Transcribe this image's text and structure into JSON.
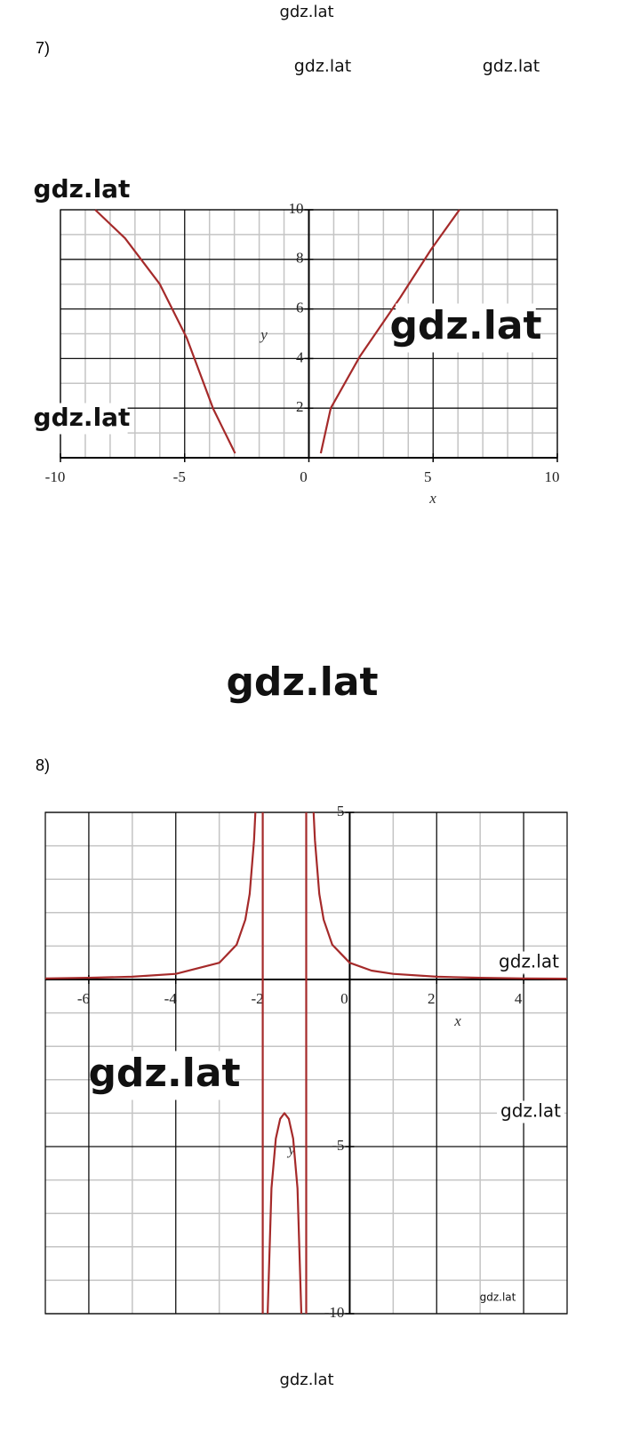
{
  "labels": [
    "7)",
    "8)"
  ],
  "watermarks": [
    "gdz.lat",
    "gdz.lat",
    "gdz.lat",
    "gdz.lat",
    "gdz.lat",
    "gdz.lat",
    "gdz.lat",
    "gdz.lat",
    "gdz.lat",
    "gdz.lat",
    "gdz.lat",
    "gdz.lat"
  ],
  "chart_data": [
    {
      "type": "line",
      "xlabel": "x",
      "ylabel": "y",
      "xlim": [
        -10,
        10
      ],
      "ylim": [
        0,
        10
      ],
      "xticks": [
        -10,
        -5,
        0,
        5,
        10
      ],
      "yticks": [
        2,
        4,
        6,
        8,
        10
      ],
      "xgrid": [
        -10,
        -5,
        0,
        5,
        10
      ],
      "ygrid": [
        0,
        2,
        4,
        6,
        8,
        10
      ],
      "xminor": [
        -9,
        -8,
        -7,
        -6,
        -4,
        -3,
        -2,
        -1,
        1,
        2,
        3,
        4,
        6,
        7,
        8,
        9
      ],
      "yminor": [
        1,
        3,
        5,
        7,
        9
      ],
      "series": [
        {
          "color": "#a52a2a",
          "x": [
            -8.6,
            -7.4,
            -6,
            -4.92,
            -3.85,
            -2.97,
            null,
            0.48,
            0.88,
            2.06,
            3.67,
            4.92,
            6.06
          ],
          "values": [
            10,
            8.85,
            7,
            4.84,
            1.97,
            0.18,
            null,
            0.18,
            2,
            4.1,
            6.45,
            8.4,
            10
          ]
        }
      ]
    },
    {
      "type": "line",
      "xlabel": "x",
      "ylabel": "y",
      "xlim": [
        -7,
        5
      ],
      "ylim": [
        -10,
        5
      ],
      "xticks": [
        -6,
        -4,
        -2,
        0,
        2,
        4
      ],
      "yticks": [
        5,
        -5,
        -10
      ],
      "xgrid": [
        -6,
        -4,
        -2,
        0,
        2,
        4
      ],
      "ygrid": [
        5,
        0,
        -5,
        -10
      ],
      "xminor": [
        -5,
        -3,
        -1,
        1,
        3
      ],
      "yminor": [
        4,
        3,
        2,
        1,
        -1,
        -2,
        -3,
        -4,
        -6,
        -7,
        -8,
        -9
      ],
      "asymptotes": [
        -2,
        -1
      ],
      "series": [
        {
          "color": "#a52a2a",
          "x": [
            -7,
            -6,
            -5,
            -4,
            -3,
            -2.6,
            -2.4,
            -2.3,
            -2.2,
            -2.17,
            null,
            -1.887,
            -1.8,
            -1.7,
            -1.6,
            -1.5,
            -1.4,
            -1.3,
            -1.2,
            -1.113,
            null,
            -0.83,
            -0.8,
            -0.7,
            -0.6,
            -0.4,
            0,
            0.5,
            1,
            2,
            3,
            4,
            5
          ],
          "values": [
            0.033,
            0.05,
            0.083,
            0.167,
            0.5,
            1.04,
            1.79,
            2.56,
            4.17,
            5,
            null,
            -10,
            -6.25,
            -4.76,
            -4.17,
            -4,
            -4.17,
            -4.76,
            -6.25,
            -10,
            null,
            5,
            4.17,
            2.56,
            1.79,
            1.04,
            0.5,
            0.267,
            0.167,
            0.083,
            0.05,
            0.033,
            0.024
          ]
        }
      ]
    }
  ]
}
